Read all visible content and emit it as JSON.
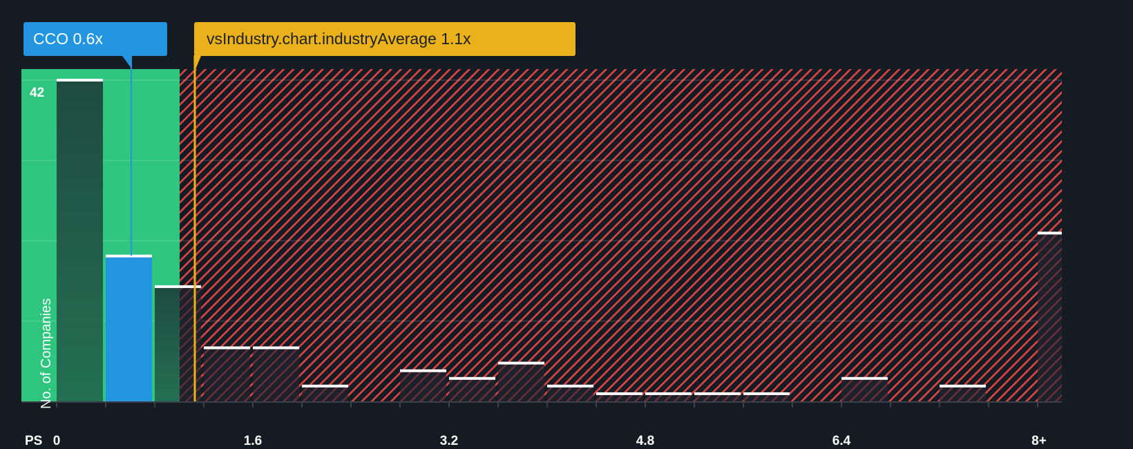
{
  "callouts": {
    "company": "CCO 0.6x",
    "industry": "vsIndustry.chart.industryAverage 1.1x"
  },
  "axis": {
    "x_title": "PS",
    "y_title": "No. of Companies",
    "y_max_label": "42",
    "x_tick_labels": [
      "0",
      "1.6",
      "3.2",
      "4.8",
      "6.4",
      "8+"
    ]
  },
  "colors": {
    "background": "#151b23",
    "fair_zone": "#2ec67f",
    "over_zone_stripe": "#e04545",
    "company": "#2394df",
    "industry": "#ebb11a",
    "bar_dark": "#1f4a3f",
    "bar_top": "#ffffff"
  },
  "chart_data": {
    "type": "bar",
    "title": "Price to Sales Ratio vs Industry distribution",
    "xlabel": "PS",
    "ylabel": "No. of Companies",
    "categories": [
      "0",
      "0.4",
      "0.8",
      "1.2",
      "1.6",
      "2.0",
      "2.4",
      "2.8",
      "3.2",
      "3.6",
      "4.0",
      "4.4",
      "4.8",
      "5.2",
      "5.6",
      "6.0",
      "6.4",
      "6.8",
      "7.2",
      "7.6",
      "8+"
    ],
    "values": [
      42,
      19,
      15,
      7,
      7,
      2,
      0,
      4,
      3,
      5,
      2,
      1,
      1,
      1,
      1,
      0,
      3,
      0,
      2,
      0,
      22
    ],
    "ylim": [
      0,
      42
    ],
    "x_ticks": [
      0,
      1.6,
      3.2,
      4.8,
      6.4,
      8
    ],
    "company_value": 0.6,
    "company_label": "CCO 0.6x",
    "industry_average": 1.1,
    "industry_label": "vsIndustry.chart.industryAverage 1.1x",
    "highlighted_bin": 1,
    "fair_zone_max": 1.0,
    "grid": true,
    "legend": "none"
  }
}
